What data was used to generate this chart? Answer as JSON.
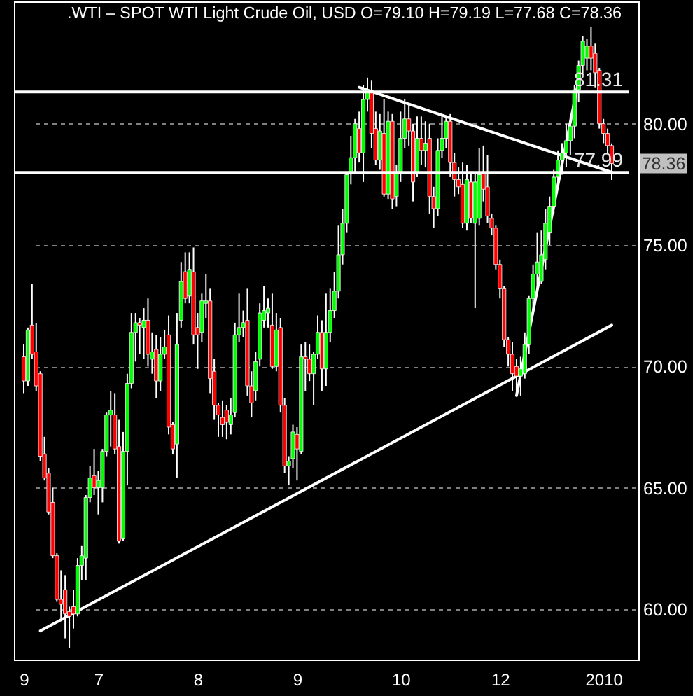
{
  "chart_data": {
    "type": "candlestick",
    "title": ".WTI – SPOT WTI Light Crude Oil, USD O=79.10 H=79.19 L=77.68 C=78.36",
    "categories": [
      "9",
      null,
      null,
      null,
      null,
      null,
      null,
      null,
      null,
      null,
      null,
      null,
      null,
      null,
      null,
      null,
      null,
      null,
      "7",
      null,
      null,
      null,
      null,
      null,
      null,
      null,
      null,
      null,
      null,
      null,
      null,
      null,
      null,
      null,
      null,
      null,
      null,
      null,
      null,
      null,
      null,
      null,
      "8",
      null,
      null,
      null,
      null,
      null,
      null,
      null,
      null,
      null,
      null,
      null,
      null,
      null,
      null,
      null,
      null,
      null,
      null,
      null,
      null,
      null,
      null,
      null,
      "9",
      null,
      null,
      null,
      null,
      null,
      null,
      null,
      null,
      null,
      null,
      null,
      null,
      null,
      null,
      null,
      null,
      null,
      null,
      null,
      null,
      null,
      null,
      null,
      null,
      "10",
      null,
      null,
      null,
      null,
      null,
      null,
      null,
      null,
      null,
      null,
      null,
      null,
      null,
      null,
      null,
      null,
      null,
      null,
      null,
      null,
      null,
      null,
      null,
      "12",
      null,
      null,
      null,
      null,
      null,
      null,
      null,
      null,
      null,
      null,
      null,
      null,
      null,
      null,
      null,
      null,
      null,
      null,
      null,
      null,
      null,
      null,
      null,
      null,
      "2010",
      null,
      null
    ],
    "ohlc": [
      [
        70.4,
        70.9,
        68.9,
        69.4
      ],
      [
        69.4,
        71.6,
        69.2,
        71.5
      ],
      [
        71.7,
        73.4,
        70.3,
        70.5
      ],
      [
        70.6,
        71.8,
        69.0,
        69.2
      ],
      [
        69.7,
        69.8,
        66.1,
        66.3
      ],
      [
        66.4,
        67.1,
        65.3,
        65.4
      ],
      [
        65.6,
        65.8,
        63.9,
        64.0
      ],
      [
        64.4,
        65.0,
        62.1,
        62.2
      ],
      [
        62.2,
        62.3,
        60.3,
        60.4
      ],
      [
        60.4,
        61.6,
        59.6,
        60.2
      ],
      [
        60.8,
        61.4,
        58.8,
        59.8
      ],
      [
        59.9,
        60.1,
        58.4,
        59.7
      ],
      [
        60.1,
        60.8,
        59.2,
        59.8
      ],
      [
        59.8,
        62.1,
        59.7,
        61.8
      ],
      [
        61.8,
        62.6,
        61.2,
        62.2
      ],
      [
        62.1,
        64.7,
        61.2,
        64.6
      ],
      [
        64.6,
        65.9,
        64.4,
        65.4
      ],
      [
        65.5,
        66.6,
        64.7,
        65.0
      ],
      [
        65.0,
        65.7,
        63.9,
        65.3
      ],
      [
        65.0,
        66.6,
        64.4,
        66.5
      ],
      [
        66.5,
        68.1,
        66.3,
        68.0
      ],
      [
        68.0,
        69.0,
        66.7,
        68.2
      ],
      [
        68.0,
        68.9,
        66.4,
        66.6
      ],
      [
        66.7,
        67.8,
        62.7,
        62.8
      ],
      [
        62.9,
        67.3,
        62.8,
        66.5
      ],
      [
        66.5,
        69.7,
        65.1,
        69.3
      ],
      [
        69.3,
        72.2,
        69.1,
        71.4
      ],
      [
        71.4,
        72.2,
        70.2,
        71.8
      ],
      [
        71.8,
        72.0,
        70.5,
        71.7
      ],
      [
        71.6,
        72.4,
        70.3,
        71.9
      ],
      [
        71.9,
        72.8,
        70.0,
        70.5
      ],
      [
        70.3,
        71.4,
        69.7,
        70.6
      ],
      [
        70.7,
        71.3,
        68.7,
        69.4
      ],
      [
        69.4,
        71.2,
        69.0,
        70.5
      ],
      [
        70.5,
        71.5,
        70.3,
        70.8
      ],
      [
        71.3,
        72.1,
        67.2,
        67.5
      ],
      [
        67.6,
        67.7,
        66.4,
        66.6
      ],
      [
        66.8,
        72.2,
        65.4,
        70.9
      ],
      [
        71.9,
        74.3,
        71.6,
        73.5
      ],
      [
        73.9,
        74.7,
        72.6,
        72.8
      ],
      [
        72.9,
        74.7,
        72.6,
        74.0
      ],
      [
        73.9,
        74.9,
        70.9,
        71.3
      ],
      [
        71.6,
        72.2,
        69.9,
        71.3
      ],
      [
        71.4,
        73.0,
        71.0,
        72.7
      ],
      [
        72.6,
        73.8,
        72.0,
        72.7
      ],
      [
        72.7,
        73.2,
        68.9,
        69.5
      ],
      [
        69.8,
        70.3,
        67.8,
        68.4
      ],
      [
        68.4,
        68.5,
        67.1,
        68.0
      ],
      [
        67.9,
        68.6,
        67.1,
        67.6
      ],
      [
        68.2,
        68.4,
        67.0,
        67.7
      ],
      [
        67.6,
        68.7,
        67.2,
        68.0
      ],
      [
        68.1,
        71.8,
        67.9,
        71.3
      ],
      [
        71.3,
        73.0,
        71.0,
        71.6
      ],
      [
        71.6,
        72.3,
        71.2,
        71.8
      ],
      [
        71.9,
        73.2,
        68.8,
        69.2
      ],
      [
        69.2,
        69.8,
        67.9,
        68.5
      ],
      [
        69.0,
        70.6,
        68.6,
        70.2
      ],
      [
        70.3,
        72.6,
        70.0,
        72.2
      ],
      [
        71.9,
        73.3,
        71.6,
        72.3
      ],
      [
        72.2,
        72.8,
        71.6,
        72.4
      ],
      [
        71.7,
        73.0,
        69.9,
        70.0
      ],
      [
        70.0,
        72.2,
        69.8,
        71.5
      ],
      [
        71.6,
        72.0,
        68.1,
        68.4
      ],
      [
        68.4,
        68.7,
        65.6,
        65.9
      ],
      [
        65.9,
        66.3,
        65.1,
        66.1
      ],
      [
        66.2,
        67.6,
        65.8,
        67.3
      ],
      [
        67.2,
        67.5,
        65.3,
        66.6
      ],
      [
        66.5,
        70.9,
        66.4,
        70.4
      ],
      [
        70.4,
        71.0,
        69.0,
        70.3
      ],
      [
        70.3,
        70.9,
        69.4,
        69.7
      ],
      [
        69.7,
        70.6,
        68.4,
        70.5
      ],
      [
        70.5,
        72.1,
        70.3,
        71.4
      ],
      [
        71.4,
        71.9,
        69.0,
        69.9
      ],
      [
        69.9,
        73.0,
        69.2,
        71.4
      ],
      [
        71.4,
        73.2,
        71.0,
        72.3
      ],
      [
        72.3,
        73.9,
        72.0,
        73.1
      ],
      [
        73.1,
        75.8,
        72.8,
        74.6
      ],
      [
        74.6,
        76.5,
        74.2,
        75.9
      ],
      [
        75.9,
        78.0,
        75.5,
        77.9
      ],
      [
        78.0,
        79.5,
        77.5,
        78.6
      ],
      [
        78.6,
        80.2,
        78.0,
        80.0
      ],
      [
        79.8,
        80.5,
        78.4,
        78.8
      ],
      [
        78.8,
        81.6,
        77.6,
        81.0
      ],
      [
        81.0,
        81.9,
        80.5,
        81.4
      ],
      [
        81.3,
        81.8,
        79.0,
        79.6
      ],
      [
        79.8,
        80.5,
        78.3,
        78.5
      ],
      [
        78.5,
        80.4,
        78.1,
        79.7
      ],
      [
        79.6,
        81.0,
        77.0,
        77.1
      ],
      [
        77.1,
        80.5,
        76.9,
        80.1
      ],
      [
        80.1,
        80.4,
        76.5,
        76.9
      ],
      [
        77.0,
        78.3,
        76.6,
        78.0
      ],
      [
        78.0,
        80.5,
        77.6,
        79.4
      ],
      [
        79.4,
        81.0,
        79.0,
        80.2
      ],
      [
        80.2,
        80.8,
        79.1,
        79.7
      ],
      [
        79.7,
        80.0,
        76.8,
        77.6
      ],
      [
        78.0,
        80.3,
        77.8,
        79.4
      ],
      [
        79.4,
        80.3,
        78.3,
        78.9
      ],
      [
        78.9,
        80.1,
        78.2,
        79.2
      ],
      [
        79.4,
        80.0,
        76.3,
        77.0
      ],
      [
        77.0,
        77.4,
        75.7,
        76.5
      ],
      [
        76.5,
        79.4,
        76.2,
        78.9
      ],
      [
        78.9,
        80.3,
        78.6,
        79.4
      ],
      [
        79.4,
        80.3,
        79.0,
        80.1
      ],
      [
        80.1,
        80.4,
        77.8,
        78.4
      ],
      [
        78.4,
        78.8,
        77.0,
        77.7
      ],
      [
        77.7,
        78.2,
        77.1,
        77.4
      ],
      [
        77.5,
        78.4,
        75.7,
        75.9
      ],
      [
        75.9,
        78.3,
        75.6,
        77.7
      ],
      [
        77.6,
        78.0,
        75.9,
        76.1
      ],
      [
        75.9,
        78.0,
        72.4,
        77.6
      ],
      [
        76.1,
        79.0,
        75.8,
        77.9
      ],
      [
        78.0,
        79.1,
        76.8,
        77.3
      ],
      [
        77.4,
        78.7,
        75.9,
        76.2
      ],
      [
        76.1,
        76.3,
        75.4,
        75.7
      ],
      [
        75.7,
        75.8,
        74.0,
        74.2
      ],
      [
        74.2,
        74.4,
        72.8,
        73.2
      ],
      [
        73.2,
        73.3,
        70.8,
        71.1
      ],
      [
        71.1,
        71.2,
        70.0,
        70.5
      ],
      [
        70.5,
        71.0,
        69.0,
        69.7
      ],
      [
        70.0,
        70.3,
        68.8,
        69.6
      ],
      [
        69.6,
        70.4,
        68.8,
        69.9
      ],
      [
        69.7,
        71.4,
        69.5,
        70.9
      ],
      [
        70.9,
        72.9,
        70.5,
        72.8
      ],
      [
        72.8,
        74.2,
        72.3,
        73.8
      ],
      [
        73.8,
        75.5,
        73.0,
        74.3
      ],
      [
        73.5,
        75.6,
        73.4,
        74.6
      ],
      [
        74.4,
        76.5,
        74.0,
        75.9
      ],
      [
        75.5,
        77.0,
        75.0,
        76.6
      ],
      [
        76.6,
        78.1,
        76.3,
        77.8
      ],
      [
        77.8,
        78.9,
        77.4,
        78.5
      ],
      [
        78.5,
        79.2,
        77.9,
        78.8
      ],
      [
        78.8,
        80.0,
        78.2,
        79.3
      ],
      [
        79.3,
        80.3,
        78.7,
        79.9
      ],
      [
        79.9,
        81.6,
        79.4,
        81.4
      ],
      [
        81.4,
        82.6,
        80.9,
        82.4
      ],
      [
        82.4,
        83.6,
        82.0,
        83.4
      ],
      [
        82.7,
        83.5,
        82.2,
        83.2
      ],
      [
        83.2,
        84.0,
        82.2,
        82.7
      ],
      [
        82.9,
        83.3,
        81.5,
        82.1
      ],
      [
        82.2,
        82.3,
        79.8,
        80.0
      ],
      [
        80.0,
        80.2,
        79.2,
        79.6
      ],
      [
        79.6,
        79.8,
        78.8,
        79.1
      ],
      [
        79.1,
        79.19,
        77.68,
        78.36
      ]
    ],
    "colors": [
      "#ff0000",
      "#00ff00",
      "#ff0000",
      "#ff0000",
      "#ff0000",
      "#ff0000",
      "#ff0000",
      "#ff0000",
      "#ff0000",
      "#ff0000",
      "#ff0000",
      "#ff0000",
      "#ff0000",
      "#00ff00",
      "#00ff00",
      "#00ff00",
      "#00ff00",
      "#ff0000",
      "#00ff00",
      "#00ff00",
      "#00ff00",
      "#00ff00",
      "#ff0000",
      "#ff0000",
      "#00ff00",
      "#00ff00",
      "#00ff00",
      "#00ff00",
      "#ff0000",
      "#00ff00",
      "#ff0000",
      "#00ff00",
      "#ff0000",
      "#00ff00",
      "#00ff00",
      "#ff0000",
      "#ff0000",
      "#00ff00",
      "#00ff00",
      "#ff0000",
      "#00ff00",
      "#ff0000",
      "#ff0000",
      "#00ff00",
      "#00ff00",
      "#ff0000",
      "#ff0000",
      "#ff0000",
      "#ff0000",
      "#ff0000",
      "#00ff00",
      "#00ff00",
      "#00ff00",
      "#00ff00",
      "#ff0000",
      "#ff0000",
      "#00ff00",
      "#00ff00",
      "#00ff00",
      "#00ff00",
      "#ff0000",
      "#00ff00",
      "#ff0000",
      "#ff0000",
      "#00ff00",
      "#00ff00",
      "#ff0000",
      "#00ff00",
      "#ff0000",
      "#ff0000",
      "#00ff00",
      "#00ff00",
      "#ff0000",
      "#00ff00",
      "#00ff00",
      "#00ff00",
      "#00ff00",
      "#00ff00",
      "#00ff00",
      "#00ff00",
      "#00ff00",
      "#ff0000",
      "#00ff00",
      "#00ff00",
      "#ff0000",
      "#ff0000",
      "#00ff00",
      "#ff0000",
      "#00ff00",
      "#ff0000",
      "#00ff00",
      "#00ff00",
      "#00ff00",
      "#ff0000",
      "#ff0000",
      "#00ff00",
      "#ff0000",
      "#00ff00",
      "#ff0000",
      "#ff0000",
      "#00ff00",
      "#00ff00",
      "#00ff00",
      "#ff0000",
      "#ff0000",
      "#ff0000",
      "#ff0000",
      "#00ff00",
      "#ff0000",
      "#00ff00",
      "#00ff00",
      "#ff0000",
      "#ff0000",
      "#ff0000",
      "#ff0000",
      "#ff0000",
      "#ff0000",
      "#ff0000",
      "#ff0000",
      "#ff0000",
      "#00ff00",
      "#00ff00",
      "#00ff00",
      "#00ff00",
      "#00ff00",
      "#00ff00",
      "#00ff00",
      "#00ff00",
      "#00ff00",
      "#00ff00",
      "#00ff00",
      "#00ff00",
      "#00ff00",
      "#00ff00",
      "#00ff00",
      "#00ff00",
      "#00ff00",
      "#ff0000",
      "#ff0000",
      "#ff0000",
      "#ff0000",
      "#ff0000",
      "#ff0000"
    ],
    "series": [
      {
        "type": "line",
        "color": "#ffffff",
        "values": [
          null,
          null,
          null,
          null,
          59.1,
          null,
          null,
          null,
          null,
          null,
          null,
          null,
          null,
          null,
          null,
          null,
          null,
          null,
          null,
          null,
          null,
          null,
          null,
          null,
          null,
          null,
          null,
          null,
          null,
          null,
          null,
          null,
          null,
          null,
          null,
          null,
          null,
          null,
          null,
          null,
          null,
          null,
          null,
          null,
          null,
          null,
          null,
          null,
          null,
          null,
          null,
          null,
          null,
          null,
          null,
          null,
          null,
          null,
          null,
          null,
          null,
          null,
          null,
          null,
          null,
          null,
          null,
          null,
          null,
          null,
          null,
          null,
          null,
          null,
          null,
          null,
          null,
          null,
          null,
          null,
          null,
          null,
          null,
          null,
          null,
          null,
          null,
          null,
          null,
          null,
          null,
          null,
          null,
          null,
          null,
          null,
          null,
          null,
          null,
          null,
          null,
          null,
          null,
          null,
          null,
          null,
          null,
          null,
          null,
          null,
          null,
          null,
          null,
          null,
          null,
          null,
          null,
          null,
          null,
          null,
          null,
          null,
          null,
          null,
          null,
          null,
          null,
          null,
          null,
          null,
          null,
          null,
          null,
          null,
          null,
          null,
          null,
          null,
          null,
          null,
          null,
          null,
          71.7
        ]
      },
      {
        "type": "line",
        "color": "#ffffff",
        "values": [
          null,
          null,
          null,
          null,
          null,
          null,
          null,
          null,
          null,
          null,
          null,
          null,
          null,
          null,
          null,
          null,
          null,
          null,
          null,
          null,
          null,
          null,
          null,
          null,
          null,
          null,
          null,
          null,
          null,
          null,
          null,
          null,
          null,
          null,
          null,
          null,
          null,
          null,
          null,
          null,
          null,
          null,
          null,
          null,
          null,
          null,
          null,
          null,
          null,
          null,
          null,
          null,
          null,
          null,
          null,
          null,
          null,
          null,
          null,
          null,
          null,
          null,
          null,
          null,
          null,
          null,
          null,
          null,
          null,
          null,
          null,
          null,
          null,
          null,
          null,
          null,
          null,
          null,
          null,
          null,
          null,
          81.5,
          null,
          null,
          null,
          null,
          null,
          null,
          null,
          null,
          null,
          null,
          null,
          null,
          null,
          null,
          null,
          null,
          null,
          null,
          null,
          null,
          null,
          null,
          null,
          null,
          null,
          null,
          null,
          null,
          null,
          null,
          null,
          null,
          null,
          null,
          null,
          null,
          null,
          null,
          null,
          null,
          null,
          null,
          null,
          null,
          null,
          null,
          null,
          null,
          null,
          null,
          null,
          null,
          null,
          null,
          null,
          null,
          null,
          null,
          null,
          null,
          78.0
        ]
      },
      {
        "type": "line",
        "color": "#ffffff",
        "values": [
          null,
          null,
          null,
          null,
          null,
          null,
          null,
          null,
          null,
          null,
          null,
          null,
          null,
          null,
          null,
          null,
          null,
          null,
          null,
          null,
          null,
          null,
          null,
          null,
          null,
          null,
          null,
          null,
          null,
          null,
          null,
          null,
          null,
          null,
          null,
          null,
          null,
          null,
          null,
          null,
          null,
          null,
          null,
          null,
          null,
          null,
          null,
          null,
          null,
          null,
          null,
          null,
          null,
          null,
          null,
          null,
          null,
          null,
          null,
          null,
          null,
          null,
          null,
          null,
          null,
          null,
          null,
          null,
          null,
          null,
          null,
          null,
          null,
          null,
          null,
          null,
          null,
          null,
          null,
          null,
          null,
          null,
          null,
          null,
          null,
          null,
          null,
          null,
          null,
          null,
          null,
          null,
          null,
          null,
          null,
          null,
          null,
          null,
          null,
          null,
          null,
          null,
          null,
          null,
          null,
          null,
          null,
          null,
          null,
          null,
          null,
          null,
          null,
          null,
          null,
          null,
          null,
          null,
          null,
          68.8,
          null,
          null,
          null,
          null,
          null,
          null,
          null,
          null,
          null,
          null,
          null,
          null,
          null,
          null,
          81.8,
          null,
          null,
          null,
          null,
          null,
          null,
          null,
          null
        ]
      }
    ],
    "ref_lines": [
      {
        "axis": "y",
        "value": 81.31,
        "label": "81.31",
        "color": "#ffffff"
      },
      {
        "axis": "y",
        "value": 77.99,
        "label": "77.99",
        "color": "#ffffff"
      }
    ],
    "annotations": [
      "78.36"
    ],
    "ylim": [
      57.92,
      85.04
    ],
    "yticks": [
      {
        "value": 60,
        "label": "60.00"
      },
      {
        "value": 65,
        "label": "65.00"
      },
      {
        "value": 70,
        "label": "70.00"
      },
      {
        "value": 75,
        "label": "75.00"
      },
      {
        "value": 80,
        "label": "80.00"
      }
    ],
    "grid": "y"
  }
}
